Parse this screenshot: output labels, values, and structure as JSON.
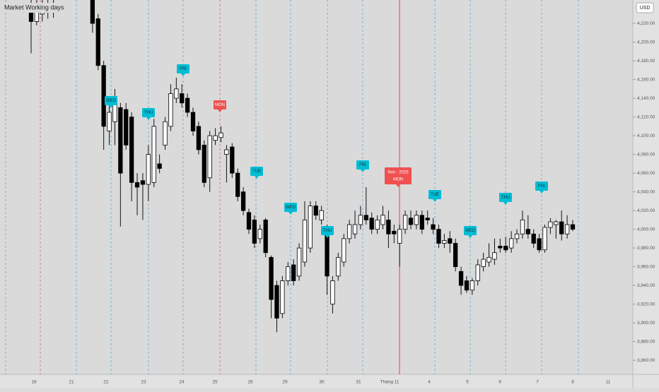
{
  "chart_data": {
    "type": "candlestick",
    "title": "Market Working days",
    "currency": "USD",
    "open": [
      4235,
      4222,
      4230,
      4236,
      4232,
      null,
      null,
      null,
      null,
      null,
      null,
      4245,
      4225,
      4175,
      4105,
      4115,
      4130,
      4128,
      4120,
      4050,
      4052,
      4048,
      4050,
      4070,
      4090,
      4110,
      4140,
      4145,
      4140,
      4125,
      4110,
      4090,
      4055,
      4095,
      4098,
      4080,
      4088,
      4060,
      4040,
      4018,
      4010,
      3990,
      4010,
      3970,
      3940,
      3910,
      3945,
      3962,
      3950,
      3965,
      3980,
      4025,
      4010,
      4000,
      3920,
      3950,
      3965,
      3990,
      3995,
      4005,
      4015,
      4012,
      4000,
      4005,
      4010,
      3998,
      3985,
      4000,
      4012,
      4005,
      4015,
      4012,
      4005,
      4000,
      3985,
      3990,
      3985,
      3955,
      3945,
      3935,
      3945,
      3960,
      3965,
      3968,
      3982,
      3982,
      3980,
      3990,
      3995,
      4000,
      3995,
      3990,
      3978,
      4002,
      4005,
      4008,
      3995,
      4005
    ],
    "high": [
      4245,
      4245,
      4245,
      4245,
      4245,
      null,
      null,
      null,
      null,
      null,
      null,
      4245,
      4230,
      4180,
      4133,
      4150,
      4135,
      4135,
      4125,
      4060,
      4060,
      4090,
      4118,
      4080,
      4120,
      4155,
      4162,
      4155,
      4145,
      4130,
      4115,
      4095,
      4105,
      4108,
      4110,
      4090,
      4092,
      4065,
      4045,
      4022,
      4015,
      4005,
      4012,
      3972,
      3945,
      3950,
      3965,
      3968,
      3985,
      4030,
      4030,
      4030,
      4025,
      4005,
      3950,
      3975,
      3995,
      4010,
      4020,
      4025,
      4045,
      4018,
      4015,
      4025,
      4020,
      4005,
      4005,
      4020,
      4020,
      4020,
      4020,
      4020,
      4012,
      4005,
      3995,
      3998,
      3990,
      3960,
      3950,
      3948,
      3968,
      3975,
      3985,
      3990,
      3990,
      3992,
      3998,
      4000,
      4020,
      4015,
      4000,
      3995,
      4005,
      4012,
      4010,
      4020,
      4015,
      4010
    ],
    "low": [
      4188,
      4218,
      4222,
      4225,
      4226,
      null,
      null,
      null,
      null,
      null,
      null,
      4210,
      4170,
      4085,
      4090,
      4090,
      4003,
      4085,
      4030,
      4015,
      4010,
      4030,
      4045,
      4060,
      4085,
      4105,
      4135,
      4130,
      4120,
      4100,
      4080,
      4045,
      4040,
      4090,
      4093,
      4050,
      4055,
      4030,
      4015,
      3995,
      3980,
      3985,
      3970,
      3905,
      3890,
      3905,
      3940,
      3940,
      3945,
      3960,
      3975,
      4010,
      4005,
      3930,
      3910,
      3945,
      3960,
      3985,
      3990,
      4000,
      4005,
      3995,
      3995,
      4000,
      3980,
      3985,
      3960,
      3995,
      4000,
      4000,
      3995,
      4005,
      3995,
      3980,
      3980,
      3975,
      3955,
      3930,
      3932,
      3930,
      3940,
      3955,
      3960,
      3962,
      3975,
      3975,
      3975,
      3985,
      3990,
      3990,
      3980,
      3975,
      3975,
      3995,
      3990,
      3988,
      3990,
      3998
    ],
    "close": [
      4222,
      4235,
      4238,
      4232,
      4240,
      null,
      null,
      null,
      null,
      null,
      null,
      4220,
      4175,
      4110,
      4125,
      4140,
      4060,
      4090,
      4050,
      4045,
      4048,
      4080,
      4110,
      4065,
      4115,
      4145,
      4150,
      4135,
      4125,
      4105,
      4085,
      4050,
      4100,
      4100,
      4103,
      4085,
      4060,
      4035,
      4020,
      4000,
      3985,
      4000,
      3975,
      3925,
      3905,
      3945,
      3960,
      3945,
      3980,
      4010,
      4025,
      4015,
      4020,
      3950,
      3945,
      3970,
      3990,
      4005,
      4005,
      4015,
      4010,
      4000,
      4010,
      4015,
      3995,
      3995,
      4000,
      4015,
      4005,
      4015,
      4000,
      4010,
      4000,
      3985,
      3988,
      3985,
      3960,
      3940,
      3935,
      3945,
      3962,
      3968,
      3970,
      3975,
      3980,
      3978,
      3990,
      3995,
      4010,
      3995,
      3985,
      3978,
      4002,
      4008,
      4008,
      3995,
      4005,
      4000
    ],
    "ylim": [
      3845,
      4245
    ],
    "yticks": [
      {
        "value": 3860,
        "label": "3,860.00"
      },
      {
        "value": 3880,
        "label": "3,880.00"
      },
      {
        "value": 3900,
        "label": "3,900.00"
      },
      {
        "value": 3920,
        "label": "3,920.00"
      },
      {
        "value": 3940,
        "label": "3,940.00"
      },
      {
        "value": 3960,
        "label": "3,960.00"
      },
      {
        "value": 3980,
        "label": "3,980.00"
      },
      {
        "value": 4000,
        "label": "4,000.00"
      },
      {
        "value": 4020,
        "label": "4,020.00"
      },
      {
        "value": 4040,
        "label": "4,040.00"
      },
      {
        "value": 4060,
        "label": "4,060.00"
      },
      {
        "value": 4080,
        "label": "4,080.00"
      },
      {
        "value": 4100,
        "label": "4,100.00"
      },
      {
        "value": 4120,
        "label": "4,120.00"
      },
      {
        "value": 4140,
        "label": "4,140.00"
      },
      {
        "value": 4160,
        "label": "4,160.00"
      },
      {
        "value": 4180,
        "label": "4,180.00"
      },
      {
        "value": 4200,
        "label": "4,200.00"
      },
      {
        "value": 4220,
        "label": "4,220.00"
      }
    ],
    "date_labels": [
      "18",
      "21",
      "22",
      "23",
      "24",
      "25",
      "26",
      "29",
      "30",
      "31",
      "Tháng 11",
      "4",
      "5",
      "6",
      "7",
      "8",
      "11"
    ],
    "day_markers": [
      {
        "label": "WED",
        "color": "#00bcd4"
      },
      {
        "label": "THU",
        "color": "#00bcd4"
      },
      {
        "label": "FRI",
        "color": "#00bcd4"
      },
      {
        "label": "MON",
        "color": "#f05050"
      },
      {
        "label": "TUE",
        "color": "#00bcd4"
      },
      {
        "label": "WED",
        "color": "#00bcd4"
      },
      {
        "label": "THU",
        "color": "#00bcd4"
      },
      {
        "label": "FRI",
        "color": "#00bcd4"
      },
      {
        "label": "Nov - 2025",
        "sublabel": "MON",
        "color": "#f05050"
      },
      {
        "label": "TUE",
        "color": "#00bcd4"
      },
      {
        "label": "WED",
        "color": "#00bcd4"
      },
      {
        "label": "THU",
        "color": "#00bcd4"
      },
      {
        "label": "FRI",
        "color": "#00bcd4"
      }
    ]
  }
}
